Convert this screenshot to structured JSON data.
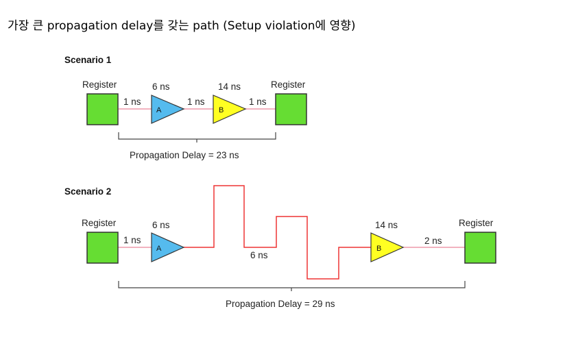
{
  "heading": "가장 큰 propagation delay를 갖는 path (Setup violation에 영향)",
  "colors": {
    "register_fill": "#66dd33",
    "gate_a_fill": "#55bbee",
    "gate_b_fill": "#ffff22",
    "wire": "#ee99aa",
    "long_wire": "#ee3333",
    "bracket": "#444444"
  },
  "scenario1": {
    "title": "Scenario 1",
    "register_left": "Register",
    "register_right": "Register",
    "gate_a_label": "A",
    "gate_b_label": "B",
    "gate_a_delay": "6 ns",
    "gate_b_delay": "14 ns",
    "wire1_delay": "1 ns",
    "wire2_delay": "1 ns",
    "wire3_delay": "1 ns",
    "total": "Propagation Delay = 23 ns"
  },
  "scenario2": {
    "title": "Scenario 2",
    "register_left": "Register",
    "register_right": "Register",
    "gate_a_label": "A",
    "gate_b_label": "B",
    "gate_a_delay": "6 ns",
    "gate_b_delay": "14 ns",
    "wire1_delay": "1 ns",
    "long_wire_delay": "6 ns",
    "wire3_delay": "2 ns",
    "total": "Propagation Delay = 29 ns"
  }
}
